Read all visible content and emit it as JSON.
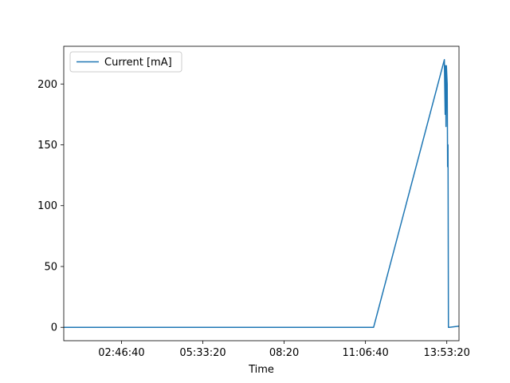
{
  "chart_data": {
    "type": "line",
    "title": "",
    "xlabel": "Time",
    "ylabel": "",
    "xticks": [
      {
        "value": 10000,
        "label": "02:46:40"
      },
      {
        "value": 20000,
        "label": "05:33:20"
      },
      {
        "value": 30000,
        "label": "08:20"
      },
      {
        "value": 40000,
        "label": "11:06:40"
      },
      {
        "value": 50000,
        "label": "13:53:20"
      }
    ],
    "yticks": [
      0,
      50,
      100,
      150,
      200
    ],
    "xlim": [
      2900,
      51500
    ],
    "ylim": [
      -11,
      231
    ],
    "grid": false,
    "legend_position": "top-left",
    "series": [
      {
        "name": "Current [mA]",
        "color": "#1f77b4",
        "x": [
          2900,
          41000,
          49700,
          49800,
          49850,
          49900,
          49950,
          50050,
          50100,
          50150,
          50200,
          50300,
          51500
        ],
        "y": [
          0,
          0,
          220,
          175,
          215,
          165,
          215,
          200,
          132,
          150,
          0,
          0,
          1
        ]
      }
    ]
  }
}
